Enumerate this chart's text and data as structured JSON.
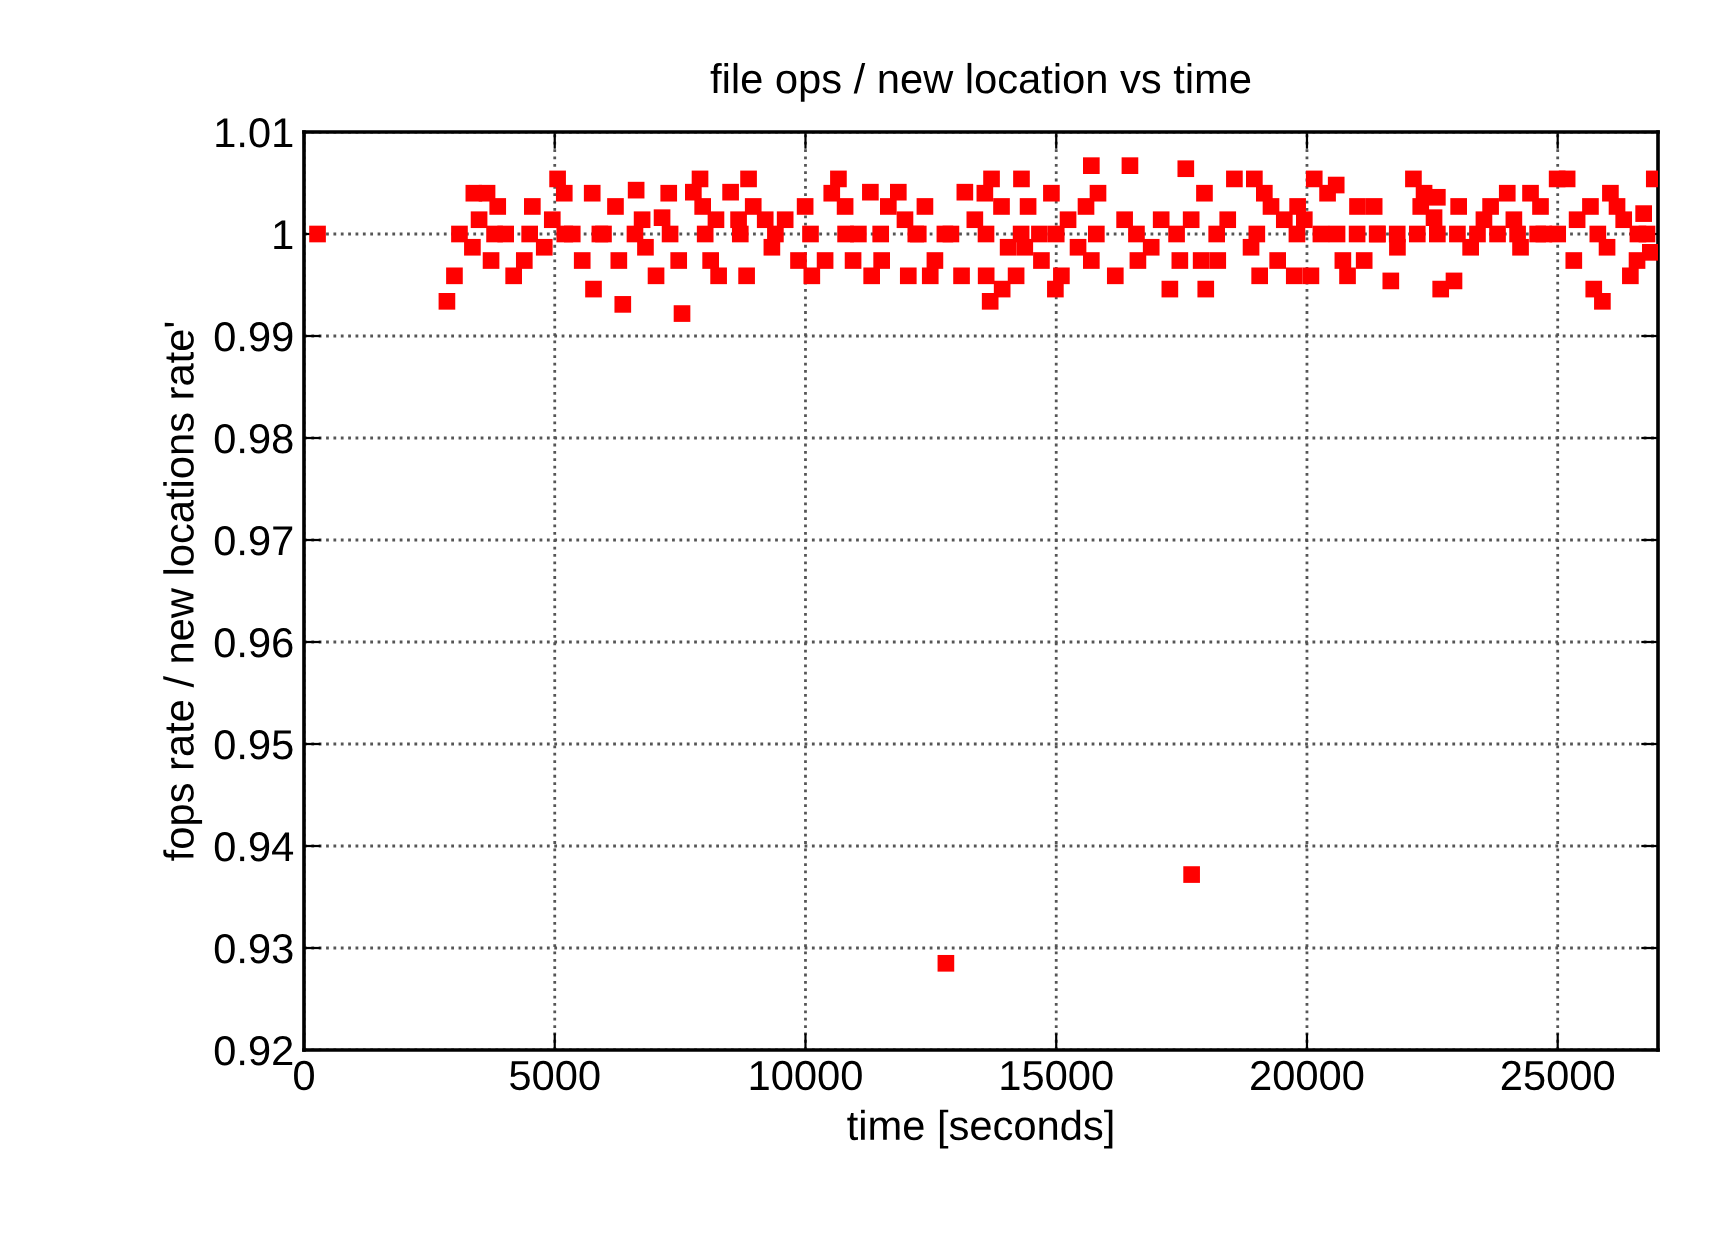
{
  "chart_data": {
    "type": "scatter",
    "title": "file ops / new location vs time",
    "xlabel": "time [seconds]",
    "ylabel": "fops rate / new locations rate'",
    "xlim": [
      0,
      27000
    ],
    "ylim": [
      0.92,
      1.01
    ],
    "xticks": [
      0,
      5000,
      10000,
      15000,
      20000,
      25000
    ],
    "yticks": [
      0.92,
      0.93,
      0.94,
      0.95,
      0.96,
      0.97,
      0.98,
      0.99,
      1,
      1.01
    ],
    "grid": true,
    "marker": "square",
    "legend": false,
    "series": [
      {
        "color": "#ff0000",
        "x": [
          270,
          3387,
          3650,
          3000,
          2850,
          3491,
          3863,
          3730,
          3358,
          4022,
          4181,
          4393,
          4553,
          4791,
          5057,
          5190,
          4951,
          5349,
          5548,
          5747,
          5773,
          5972,
          6211,
          6278,
          6357,
          6623,
          6742,
          6809,
          7020,
          7140,
          7273,
          7472,
          7538,
          7764,
          7897,
          7950,
          8109,
          8215,
          8268,
          8507,
          8666,
          8826,
          8865,
          8958,
          9197,
          9330,
          9595,
          9861,
          9993,
          10126,
          10391,
          10524,
          10657,
          10790,
          10949,
          11055,
          11294,
          11320,
          11519,
          11652,
          11851,
          11984,
          12050,
          12249,
          12382,
          12488,
          12581,
          12780,
          13112,
          13178,
          13377,
          13577,
          13603,
          13683,
          13710,
          13909,
          13922,
          14041,
          14200,
          14307,
          14373,
          14439,
          14665,
          14705,
          14904,
          14983,
          15103,
          15236,
          15435,
          15594,
          15700,
          15700,
          15833,
          16178,
          16364,
          16470,
          16629,
          16894,
          17093,
          17266,
          17465,
          17584,
          17691,
          17890,
          17956,
          17982,
          18221,
          18420,
          18553,
          18885,
          18951,
          19057,
          19150,
          19283,
          19416,
          19548,
          19747,
          19814,
          19947,
          20079,
          20145,
          20278,
          20411,
          20583,
          20716,
          20809,
          21008,
          21141,
          21340,
          21406,
          21672,
          21804,
          22123,
          22269,
          22335,
          22534,
          22600,
          22667,
          22932,
          23025,
          23264,
          23529,
          23662,
          23994,
          24126,
          24259,
          24458,
          24657,
          24724,
          24989,
          25188,
          25321,
          25387,
          25653,
          25719,
          25891,
          25984,
          26051,
          26183,
          26316,
          26449,
          26582,
          26714,
          26780,
          26847,
          26926,
          3100,
          3800,
          4500,
          5200,
          5900,
          6600,
          7300,
          8000,
          8700,
          9400,
          10100,
          10800,
          11500,
          12200,
          12900,
          13600,
          14300,
          15000,
          15800,
          16600,
          17400,
          18200,
          19000,
          19800,
          20600,
          21000,
          21400,
          21800,
          22200,
          22600,
          23000,
          23400,
          23800,
          24200,
          24600,
          25000,
          25800,
          26600,
          12800,
          17700
        ],
        "values": [
          1,
          1.004,
          1.004,
          0.9959,
          0.9934,
          1.0014,
          1.0027,
          0.9974,
          0.9987,
          1,
          0.9959,
          0.9974,
          1.0027,
          0.9987,
          1.0054,
          1.004,
          1.0014,
          1,
          0.9974,
          1.004,
          0.9946,
          1,
          1.0027,
          0.9974,
          0.9931,
          1.0043,
          1.0014,
          0.9987,
          0.9959,
          1.0016,
          1.004,
          0.9974,
          0.9922,
          1.0041,
          1.0054,
          1.0027,
          0.9974,
          1.0014,
          0.9959,
          1.0041,
          1.0014,
          0.9959,
          1.0054,
          1.0027,
          1.0014,
          0.9987,
          1.0014,
          0.9974,
          1.0027,
          0.9959,
          0.9974,
          1.004,
          1.0054,
          1.0027,
          0.9974,
          1,
          1.0041,
          0.9959,
          0.9974,
          1.0027,
          1.0041,
          1.0014,
          0.9959,
          1,
          1.0027,
          0.9959,
          0.9974,
          1,
          0.9959,
          1.0041,
          1.0014,
          1.004,
          0.9959,
          0.9934,
          1.0054,
          1.0027,
          0.9946,
          0.9987,
          0.9959,
          1.0054,
          0.9987,
          1.0027,
          1,
          0.9974,
          1.004,
          0.9946,
          0.9959,
          1.0014,
          0.9987,
          1.0027,
          1.0067,
          0.9974,
          1.004,
          0.9959,
          1.0014,
          1.0067,
          0.9974,
          0.9987,
          1.0014,
          0.9946,
          0.9974,
          1.0064,
          1.0014,
          0.9974,
          1.004,
          0.9946,
          0.9974,
          1.0014,
          1.0054,
          0.9987,
          1.0054,
          0.9959,
          1.004,
          1.0027,
          0.9974,
          1.0014,
          0.9959,
          1.0027,
          1.0014,
          0.9959,
          1.0054,
          1,
          1.004,
          1.0048,
          0.9974,
          0.9959,
          1.0027,
          0.9974,
          1.0027,
          1,
          0.9954,
          0.9987,
          1.0054,
          1.0027,
          1.004,
          1.0016,
          1.0036,
          0.9946,
          0.9954,
          1.0027,
          0.9987,
          1.0014,
          1.0027,
          1.004,
          1.0014,
          0.9987,
          1.004,
          1.0027,
          1,
          1.0054,
          1.0054,
          0.9974,
          1.0014,
          1.0027,
          0.9946,
          0.9934,
          0.9987,
          1.004,
          1.0027,
          1.0014,
          0.9959,
          0.9974,
          1.002,
          1,
          0.9982,
          1.0054,
          1,
          1,
          1,
          1,
          1,
          1,
          1,
          1,
          1,
          1,
          1,
          1,
          1,
          1,
          1,
          1,
          1,
          1,
          1,
          1,
          1,
          1,
          1,
          1,
          1,
          1,
          1,
          1,
          1,
          1,
          1,
          1,
          1,
          1,
          1,
          1,
          1,
          1,
          0.9285,
          0.9372
        ]
      }
    ]
  }
}
